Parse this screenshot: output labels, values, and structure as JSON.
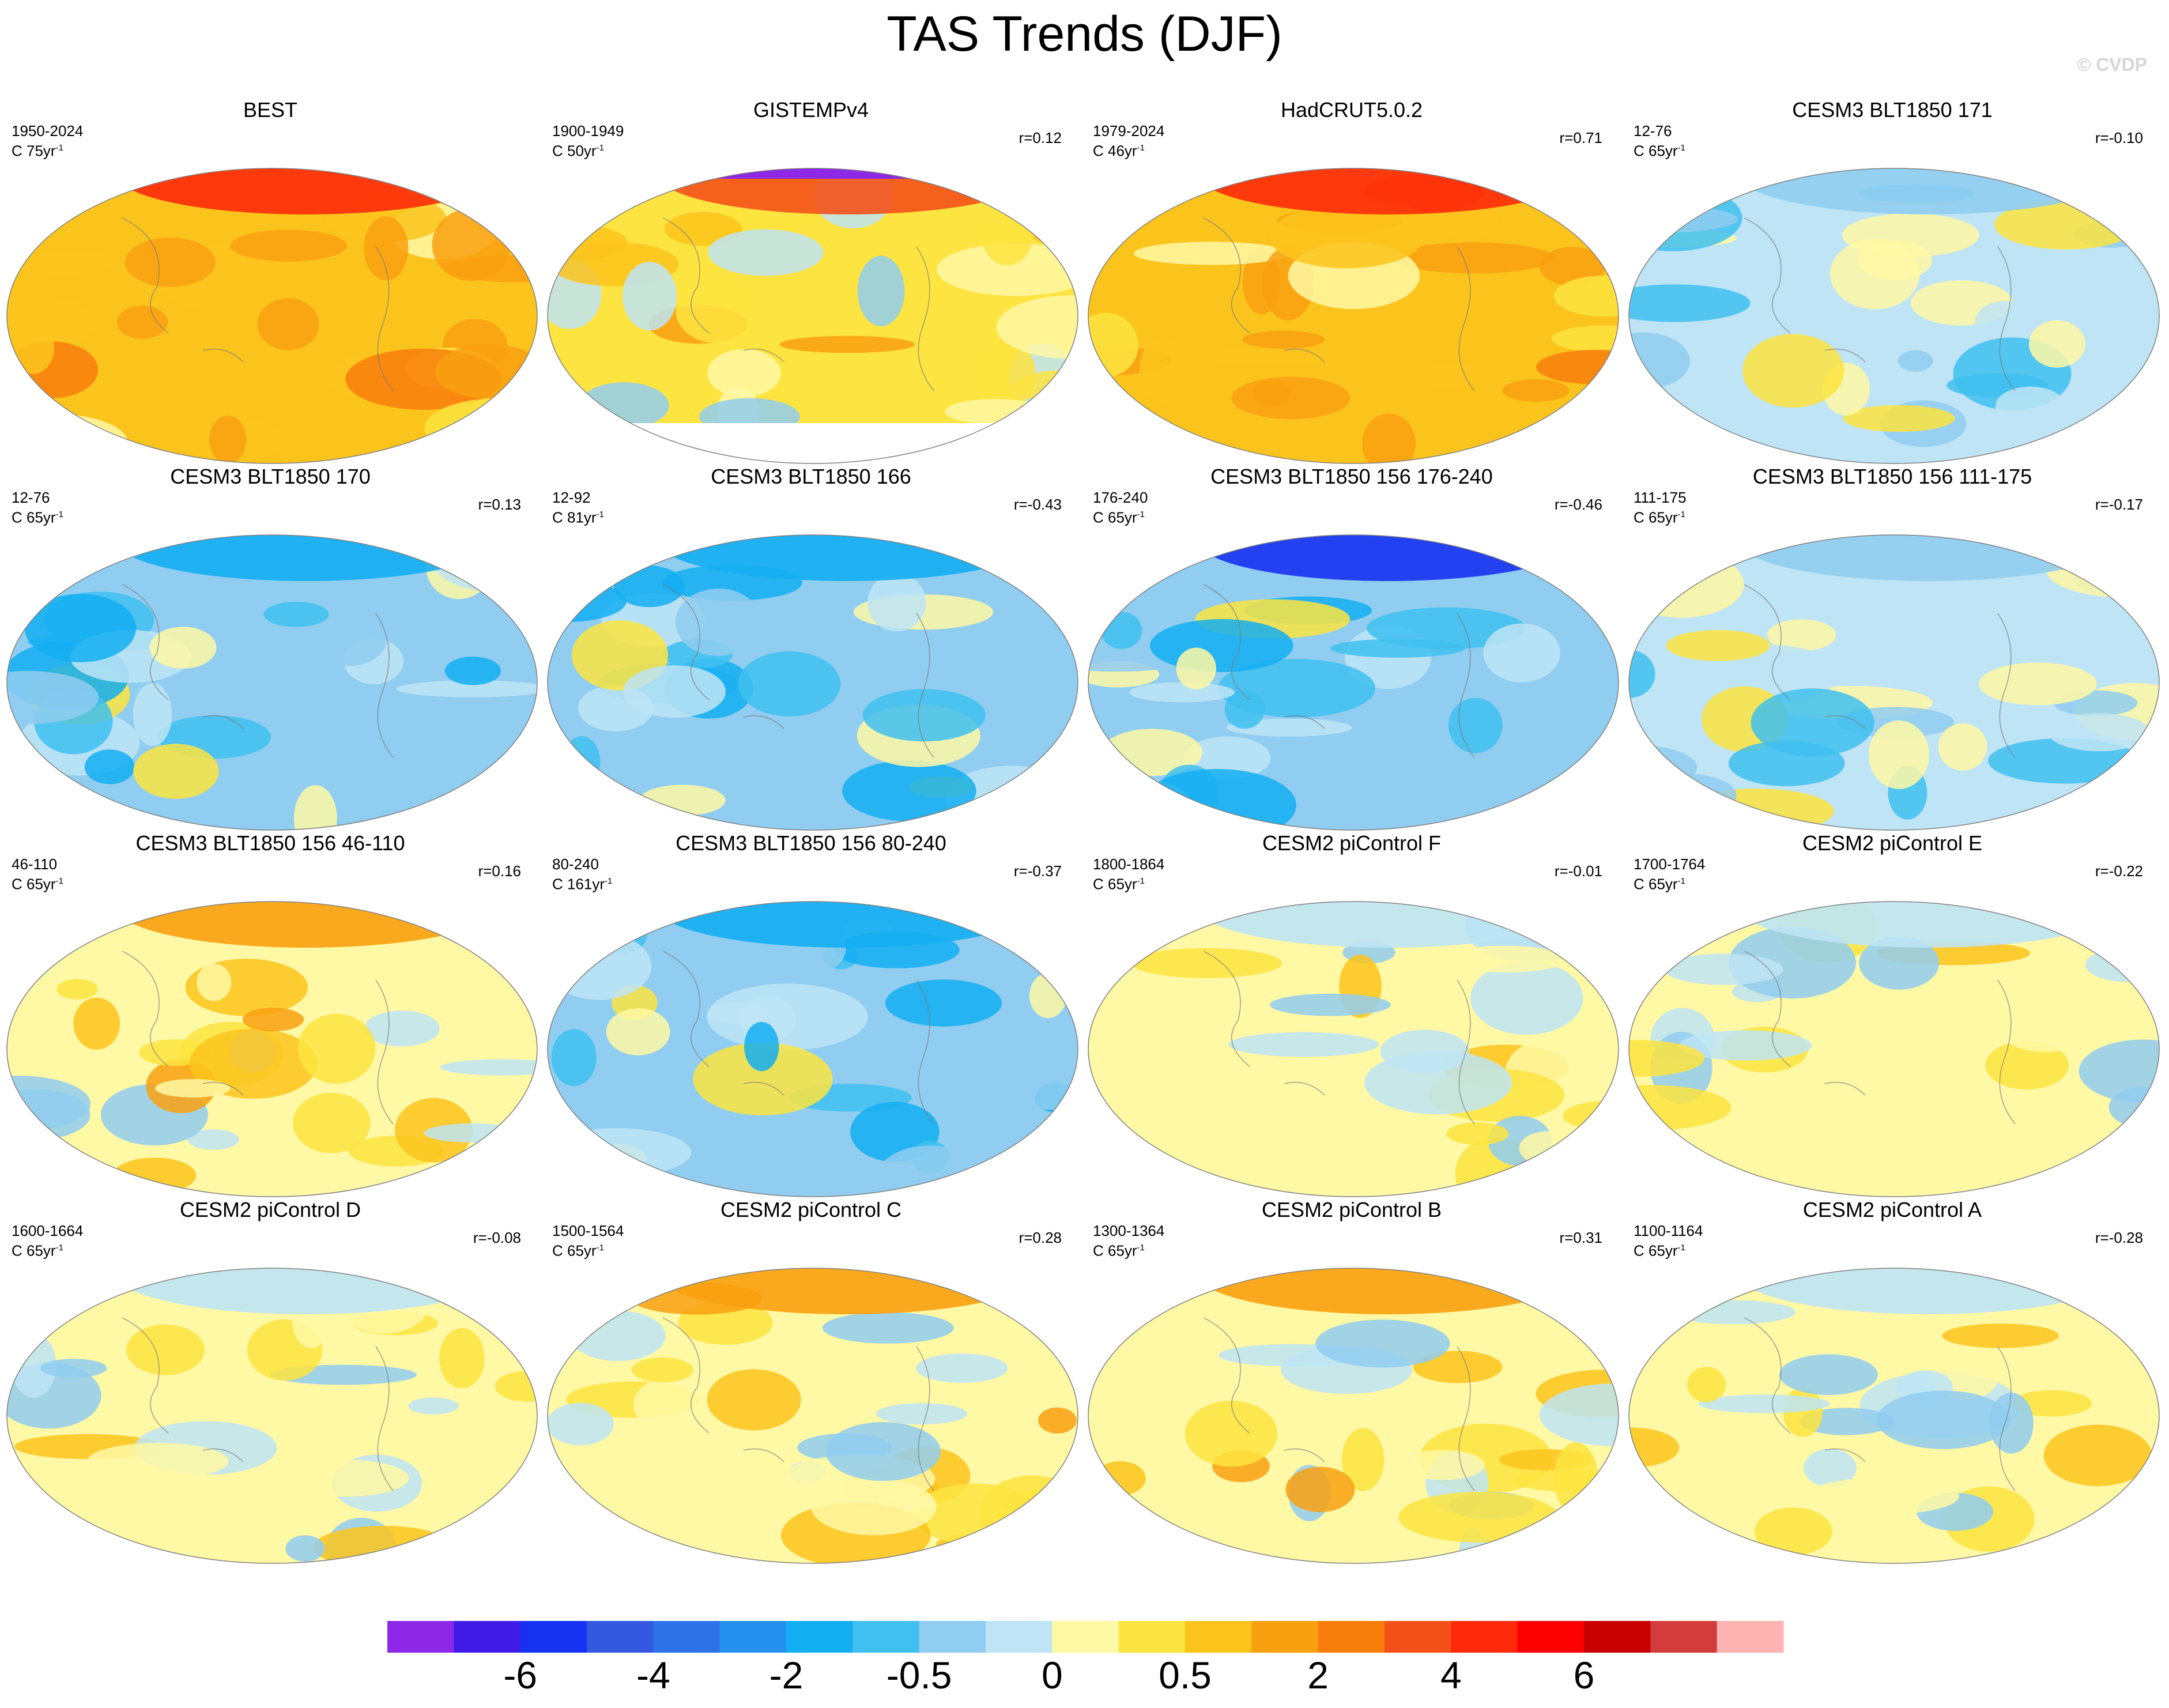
{
  "figure": {
    "title": "TAS Trends (DJF)",
    "watermark": "© CVDP"
  },
  "panels": [
    {
      "title": "BEST",
      "period": "1950-2024",
      "units": "C 75yr",
      "units_sup": "-1",
      "corr": "",
      "style": "warm"
    },
    {
      "title": "GISTEMPv4",
      "period": "1900-1949",
      "units": "C 50yr",
      "units_sup": "-1",
      "corr": "r=0.12",
      "style": "gis"
    },
    {
      "title": "HadCRUT5.0.2",
      "period": "1979-2024",
      "units": "C 46yr",
      "units_sup": "-1",
      "corr": "r=0.71",
      "style": "warm"
    },
    {
      "title": "CESM3 BLT1850 171",
      "period": "12-76",
      "units": "C 65yr",
      "units_sup": "-1",
      "corr": "r=-0.10",
      "style": "mixcool"
    },
    {
      "title": "CESM3 BLT1850 170",
      "period": "12-76",
      "units": "C 65yr",
      "units_sup": "-1",
      "corr": "r=0.13",
      "style": "cool"
    },
    {
      "title": "CESM3 BLT1850 166",
      "period": "12-92",
      "units": "C 81yr",
      "units_sup": "-1",
      "corr": "r=-0.43",
      "style": "cool"
    },
    {
      "title": "CESM3 BLT1850 156 176-240",
      "period": "176-240",
      "units": "C 65yr",
      "units_sup": "-1",
      "corr": "r=-0.46",
      "style": "coldnorth"
    },
    {
      "title": "CESM3 BLT1850 156 111-175",
      "period": "111-175",
      "units": "C 65yr",
      "units_sup": "-1",
      "corr": "r=-0.17",
      "style": "mixcool"
    },
    {
      "title": "CESM3 BLT1850 156 46-110",
      "period": "46-110",
      "units": "C 65yr",
      "units_sup": "-1",
      "corr": "r=0.16",
      "style": "mixwarm"
    },
    {
      "title": "CESM3 BLT1850 156 80-240",
      "period": "80-240",
      "units": "C 161yr",
      "units_sup": "-1",
      "corr": "r=-0.37",
      "style": "cool"
    },
    {
      "title": "CESM2 piControl F",
      "period": "1800-1864",
      "units": "C 65yr",
      "units_sup": "-1",
      "corr": "r=-0.01",
      "style": "mix"
    },
    {
      "title": "CESM2 piControl E",
      "period": "1700-1764",
      "units": "C 65yr",
      "units_sup": "-1",
      "corr": "r=-0.22",
      "style": "mix"
    },
    {
      "title": "CESM2 piControl D",
      "period": "1600-1664",
      "units": "C 65yr",
      "units_sup": "-1",
      "corr": "r=-0.08",
      "style": "mix"
    },
    {
      "title": "CESM2 piControl C",
      "period": "1500-1564",
      "units": "C 65yr",
      "units_sup": "-1",
      "corr": "r=0.28",
      "style": "mixwarm"
    },
    {
      "title": "CESM2 piControl B",
      "period": "1300-1364",
      "units": "C 65yr",
      "units_sup": "-1",
      "corr": "r=0.31",
      "style": "mixwarm"
    },
    {
      "title": "CESM2 piControl A",
      "period": "1100-1164",
      "units": "C 65yr",
      "units_sup": "-1",
      "corr": "r=-0.28",
      "style": "mix"
    }
  ],
  "colorbar": {
    "colors": [
      "#8d28e6",
      "#3f1ce6",
      "#1732f0",
      "#3558e0",
      "#2e72e8",
      "#2590f0",
      "#14aef2",
      "#40c0f0",
      "#90cdf0",
      "#bee4f5",
      "#fff8a5",
      "#fde440",
      "#fbc41c",
      "#f9a010",
      "#f87e0c",
      "#f4511a",
      "#fe2a0a",
      "#fc0000",
      "#c80000",
      "#d43c3c",
      "#ffb3b3"
    ],
    "labels": [
      "-6",
      "-4",
      "-2",
      "-0.5",
      "0",
      "0.5",
      "2",
      "4",
      "6"
    ]
  }
}
